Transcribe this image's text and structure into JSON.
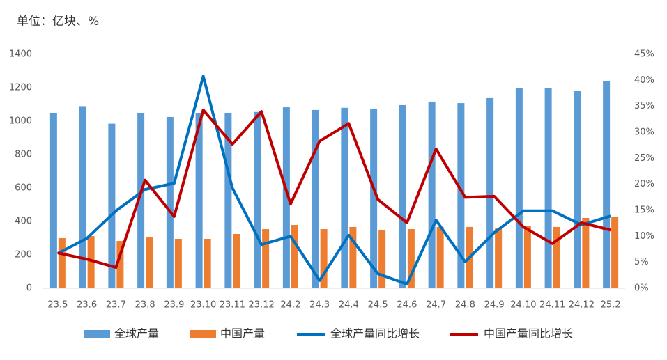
{
  "chart_data": {
    "type": "bar-line",
    "title": "单位：亿块、%",
    "categories": [
      "23.5",
      "23.6",
      "23.7",
      "23.8",
      "23.9",
      "23.10",
      "23.11",
      "23.12",
      "24.2",
      "24.3",
      "24.4",
      "24.5",
      "24.6",
      "24.7",
      "24.8",
      "24.9",
      "24.10",
      "24.11",
      "24.12",
      "25.2"
    ],
    "series": [
      {
        "name": "全球产量",
        "kind": "bar",
        "color": "#5b9bd5",
        "values": [
          1050,
          1090,
          985,
          1050,
          1025,
          1050,
          1050,
          1055,
          1083,
          1067,
          1080,
          1075,
          1096,
          1117,
          1108,
          1138,
          1200,
          1200,
          1183,
          1238
        ]
      },
      {
        "name": "中国产量",
        "kind": "bar",
        "color": "#ed7d31",
        "values": [
          300,
          312,
          283,
          304,
          296,
          296,
          325,
          354,
          379,
          354,
          367,
          346,
          354,
          367,
          367,
          358,
          371,
          367,
          421,
          425
        ]
      },
      {
        "name": "全球产量同比增长",
        "kind": "line",
        "axis": "y2",
        "color": "#0070c0",
        "values": [
          6.7,
          9.6,
          14.9,
          19,
          20.2,
          40.8,
          19.3,
          8.4,
          10,
          1.5,
          10.2,
          2.8,
          0.8,
          13.1,
          5.1,
          10.7,
          14.9,
          14.9,
          12.2,
          13.9
        ]
      },
      {
        "name": "中国产量同比增长",
        "kind": "line",
        "axis": "y2",
        "color": "#c00000",
        "values": [
          6.8,
          5.6,
          4,
          20.8,
          13.8,
          34.3,
          27.7,
          34,
          16.2,
          28.3,
          31.7,
          17.1,
          12.6,
          26.8,
          17.5,
          17.7,
          11.8,
          8.6,
          12.6,
          11.2
        ]
      }
    ],
    "ylim": [
      0,
      1400
    ],
    "yticks": [
      0,
      200,
      400,
      600,
      800,
      1000,
      1200,
      1400
    ],
    "y2lim": [
      0,
      45
    ],
    "y2ticks": [
      {
        "value": 0,
        "label": "0%"
      },
      {
        "value": 5,
        "label": "5%"
      },
      {
        "value": 10,
        "label": "10%"
      },
      {
        "value": 15,
        "label": "15%"
      },
      {
        "value": 20,
        "label": "20%"
      },
      {
        "value": 25,
        "label": "25%"
      },
      {
        "value": 30,
        "label": "30%"
      },
      {
        "value": 35,
        "label": "35%"
      },
      {
        "value": 40,
        "label": "40%"
      },
      {
        "value": 45,
        "label": "45%"
      }
    ]
  }
}
